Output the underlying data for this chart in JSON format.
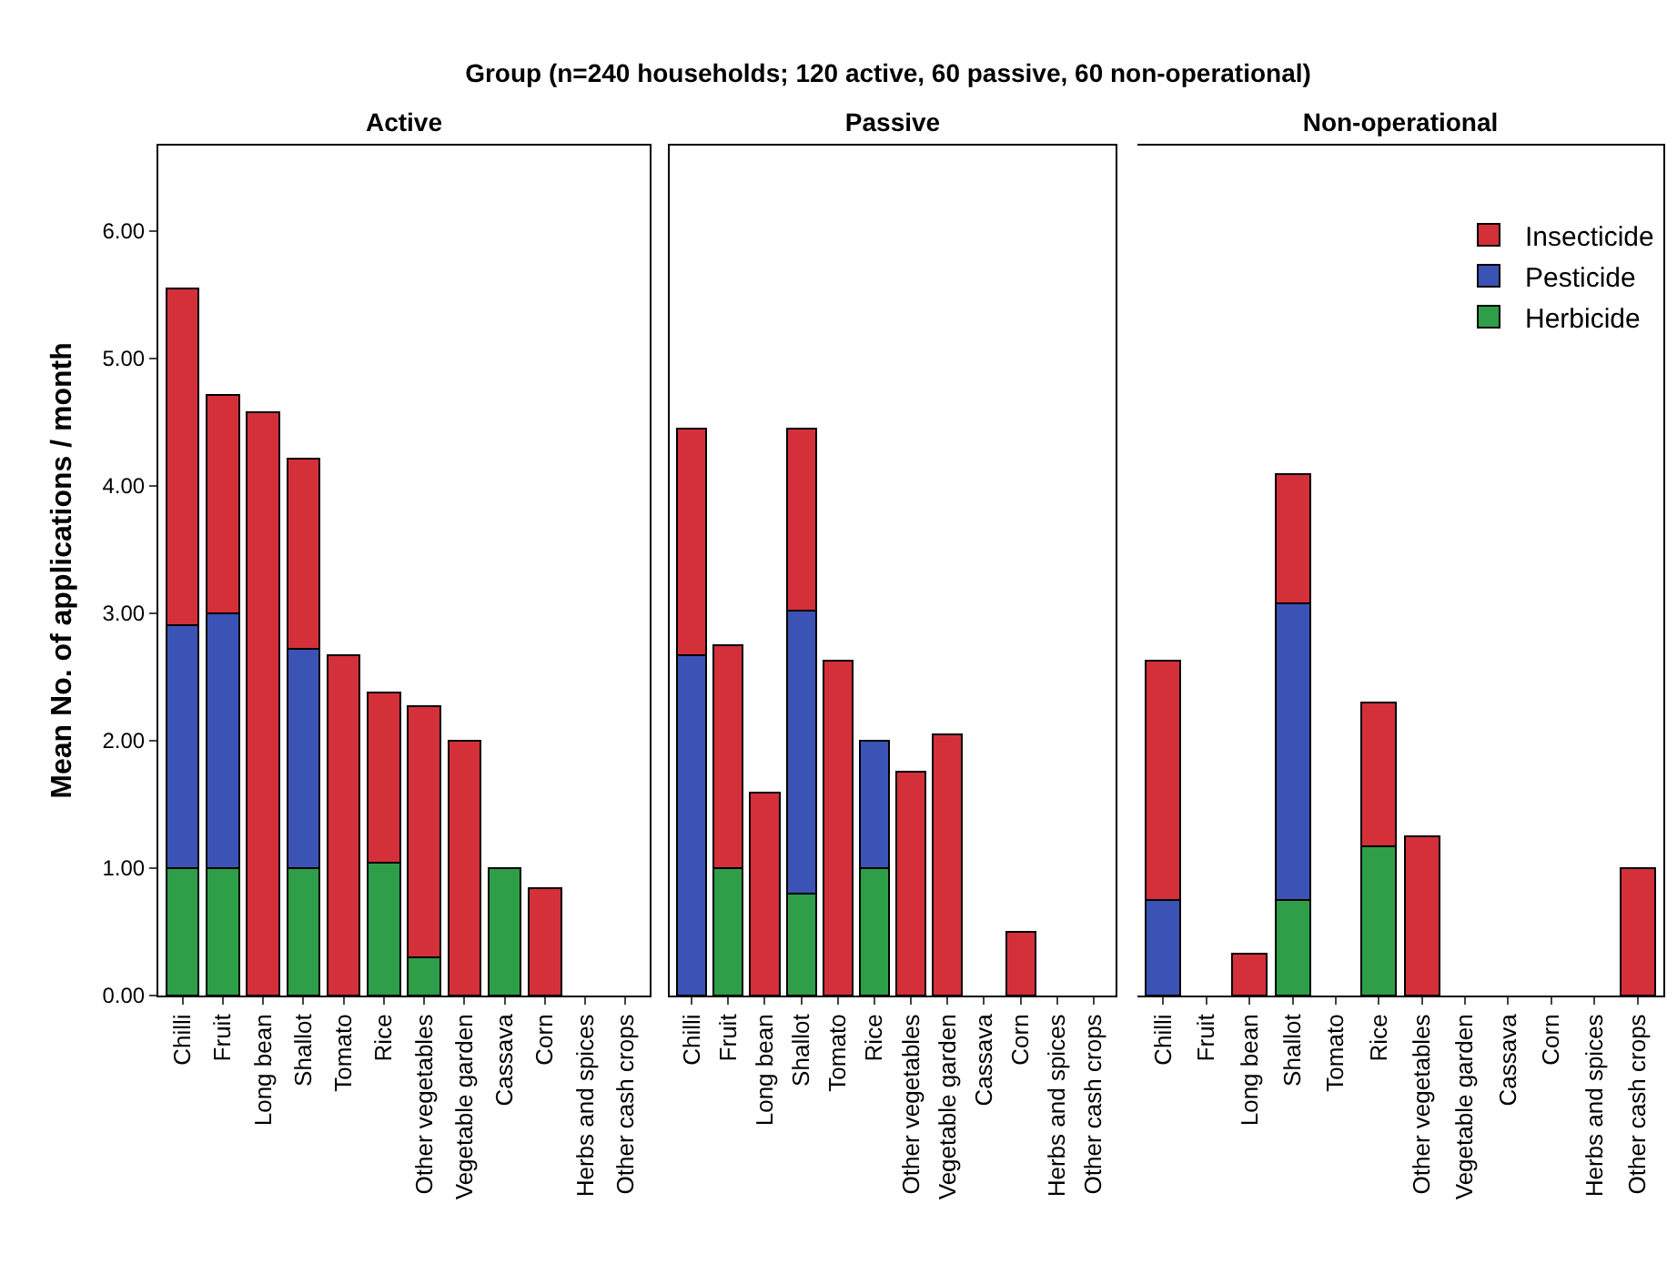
{
  "chart_data": [
    {
      "type": "bar",
      "title": "Active",
      "ylabel": "Mean No. of applications / month",
      "annotations": [
        "Group (n=240 households; 120 active, 60 passive, 60 non-operational)"
      ],
      "stacked": true,
      "legend": false,
      "grid": false,
      "categories": [
        "Chilli",
        "Fruit",
        "Long bean",
        "Shallot",
        "Tomato",
        "Rice",
        "Other vegetables",
        "Vegetable garden",
        "Cassava",
        "Corn",
        "Herbs and spices",
        "Other cash crops"
      ],
      "ylim": [
        0,
        6.67
      ],
      "yticks": [
        {
          "value": 0,
          "label": "0.00"
        },
        {
          "value": 1,
          "label": "1.00"
        },
        {
          "value": 2,
          "label": "2.00"
        },
        {
          "value": 3,
          "label": "3.00"
        },
        {
          "value": 4,
          "label": "4.00"
        },
        {
          "value": 5,
          "label": "5.00"
        },
        {
          "value": 6,
          "label": "6.00"
        }
      ],
      "series": [
        {
          "color": "#2e9e48",
          "values": [
            1.0,
            1.0,
            null,
            1.0,
            null,
            1.04,
            0.3,
            null,
            1.0,
            null,
            null,
            null
          ]
        },
        {
          "color": "#3b53b4",
          "values": [
            1.91,
            2.0,
            null,
            1.72,
            null,
            null,
            null,
            null,
            null,
            null,
            null,
            null
          ]
        },
        {
          "color": "#d3303a",
          "values": [
            2.64,
            1.71,
            4.58,
            1.49,
            2.67,
            1.34,
            1.97,
            2.0,
            null,
            0.84,
            null,
            null
          ]
        }
      ]
    },
    {
      "type": "bar",
      "title": "Passive",
      "stacked": true,
      "legend": false,
      "grid": false,
      "tick_labels": "x",
      "categories": [
        "Chilli",
        "Fruit",
        "Long bean",
        "Shallot",
        "Tomato",
        "Rice",
        "Other vegetables",
        "Vegetable garden",
        "Cassava",
        "Corn",
        "Herbs and spices",
        "Other cash crops"
      ],
      "ylim": [
        0,
        6.67
      ],
      "series": [
        {
          "color": "#2e9e48",
          "values": [
            null,
            1.0,
            null,
            0.8,
            null,
            1.0,
            null,
            null,
            null,
            null,
            null,
            null
          ]
        },
        {
          "color": "#3b53b4",
          "values": [
            2.67,
            null,
            null,
            2.22,
            null,
            1.0,
            null,
            null,
            null,
            null,
            null,
            null
          ]
        },
        {
          "color": "#d3303a",
          "values": [
            1.78,
            1.75,
            1.59,
            1.43,
            2.63,
            null,
            1.76,
            2.05,
            null,
            0.5,
            null,
            null
          ]
        }
      ]
    },
    {
      "type": "bar",
      "title": "Non-operational",
      "stacked": true,
      "legend": "top right",
      "grid": false,
      "tick_labels": "x",
      "categories": [
        "Chilli",
        "Fruit",
        "Long bean",
        "Shallot",
        "Tomato",
        "Rice",
        "Other vegetables",
        "Vegetable garden",
        "Cassava",
        "Corn",
        "Herbs and spices",
        "Other cash crops"
      ],
      "ylim": [
        0,
        6.67
      ],
      "series": [
        {
          "name": "Herbicide",
          "color": "#2e9e48",
          "values": [
            null,
            null,
            null,
            0.75,
            null,
            1.17,
            null,
            null,
            null,
            null,
            null,
            null
          ]
        },
        {
          "name": "Pesticide",
          "color": "#3b53b4",
          "values": [
            0.75,
            null,
            null,
            2.33,
            null,
            null,
            null,
            null,
            null,
            null,
            null,
            null
          ]
        },
        {
          "name": "Insecticide",
          "color": "#d3303a",
          "values": [
            1.88,
            null,
            0.33,
            1.01,
            null,
            1.13,
            1.25,
            null,
            null,
            null,
            null,
            1.0
          ]
        }
      ]
    }
  ]
}
